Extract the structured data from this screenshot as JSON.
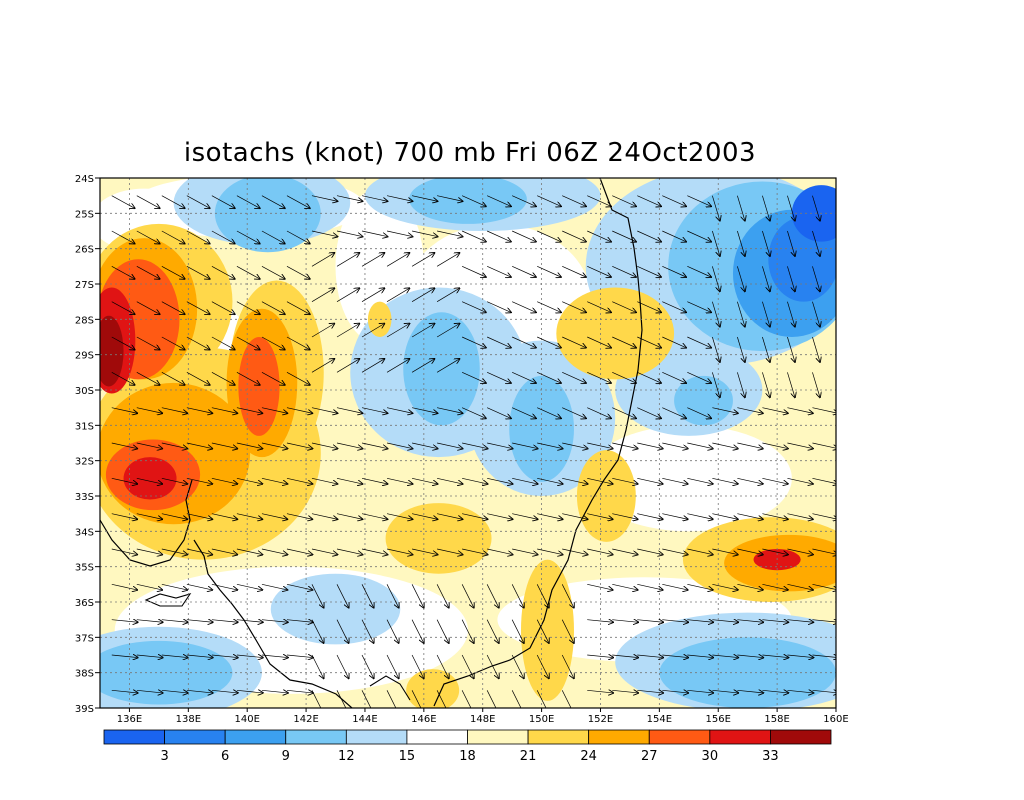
{
  "title": "isotachs (knot) 700 mb Fri 06Z 24Oct2003",
  "map": {
    "lon_range": [
      135,
      160
    ],
    "lat_range": [
      -39,
      -24
    ],
    "lat_labels": [
      "24S",
      "25S",
      "26S",
      "27S",
      "28S",
      "29S",
      "30S",
      "31S",
      "32S",
      "33S",
      "34S",
      "35S",
      "36S",
      "37S",
      "38S",
      "39S"
    ],
    "lon_labels": [
      "136E",
      "138E",
      "140E",
      "142E",
      "144E",
      "146E",
      "148E",
      "150E",
      "152E",
      "154E",
      "156E",
      "158E",
      "160E"
    ],
    "grid": true,
    "vectors": "wind arrows (direction only)"
  },
  "colorbar": {
    "colors": [
      "#1a64f0",
      "#2882f0",
      "#3ca0f0",
      "#78c8f5",
      "#b4dcf8",
      "#ffffff",
      "#fff8c0",
      "#ffd84a",
      "#ffaa00",
      "#ff5a14",
      "#e01414",
      "#a00a0a"
    ],
    "labels": [
      "3",
      "6",
      "9",
      "12",
      "15",
      "18",
      "21",
      "24",
      "27",
      "30",
      "33"
    ]
  },
  "chart_data": {
    "type": "heatmap",
    "title": "isotachs (knot) 700 mb Fri 06Z 24Oct2003",
    "x_ticks": [
      "136E",
      "138E",
      "140E",
      "142E",
      "144E",
      "146E",
      "148E",
      "150E",
      "152E",
      "154E",
      "156E",
      "158E",
      "160E"
    ],
    "y_ticks": [
      "24S",
      "25S",
      "26S",
      "27S",
      "28S",
      "29S",
      "30S",
      "31S",
      "32S",
      "33S",
      "34S",
      "35S",
      "36S",
      "37S",
      "38S",
      "39S"
    ],
    "contour_levels": [
      3,
      6,
      9,
      12,
      15,
      18,
      21,
      24,
      27,
      30,
      33
    ],
    "maxima": [
      {
        "lon": 135.3,
        "lat": -28.8,
        "value": 30
      },
      {
        "lon": 136.8,
        "lat": -32.5,
        "value": 33
      },
      {
        "lon": 140.3,
        "lat": -29.8,
        "value": 30
      },
      {
        "lon": 158.0,
        "lat": -34.8,
        "value": 30
      },
      {
        "lon": 136.5,
        "lat": -27.3,
        "value": 27
      }
    ],
    "minima": [
      {
        "lon": 158.8,
        "lat": -26.5,
        "value": 6
      },
      {
        "lon": 157.0,
        "lat": -38.0,
        "value": 9
      },
      {
        "lon": 136.5,
        "lat": -38.0,
        "value": 9
      },
      {
        "lon": 150.0,
        "lat": -31.0,
        "value": 9
      },
      {
        "lon": 147.2,
        "lat": -29.3,
        "value": 9
      }
    ],
    "grid": true
  }
}
